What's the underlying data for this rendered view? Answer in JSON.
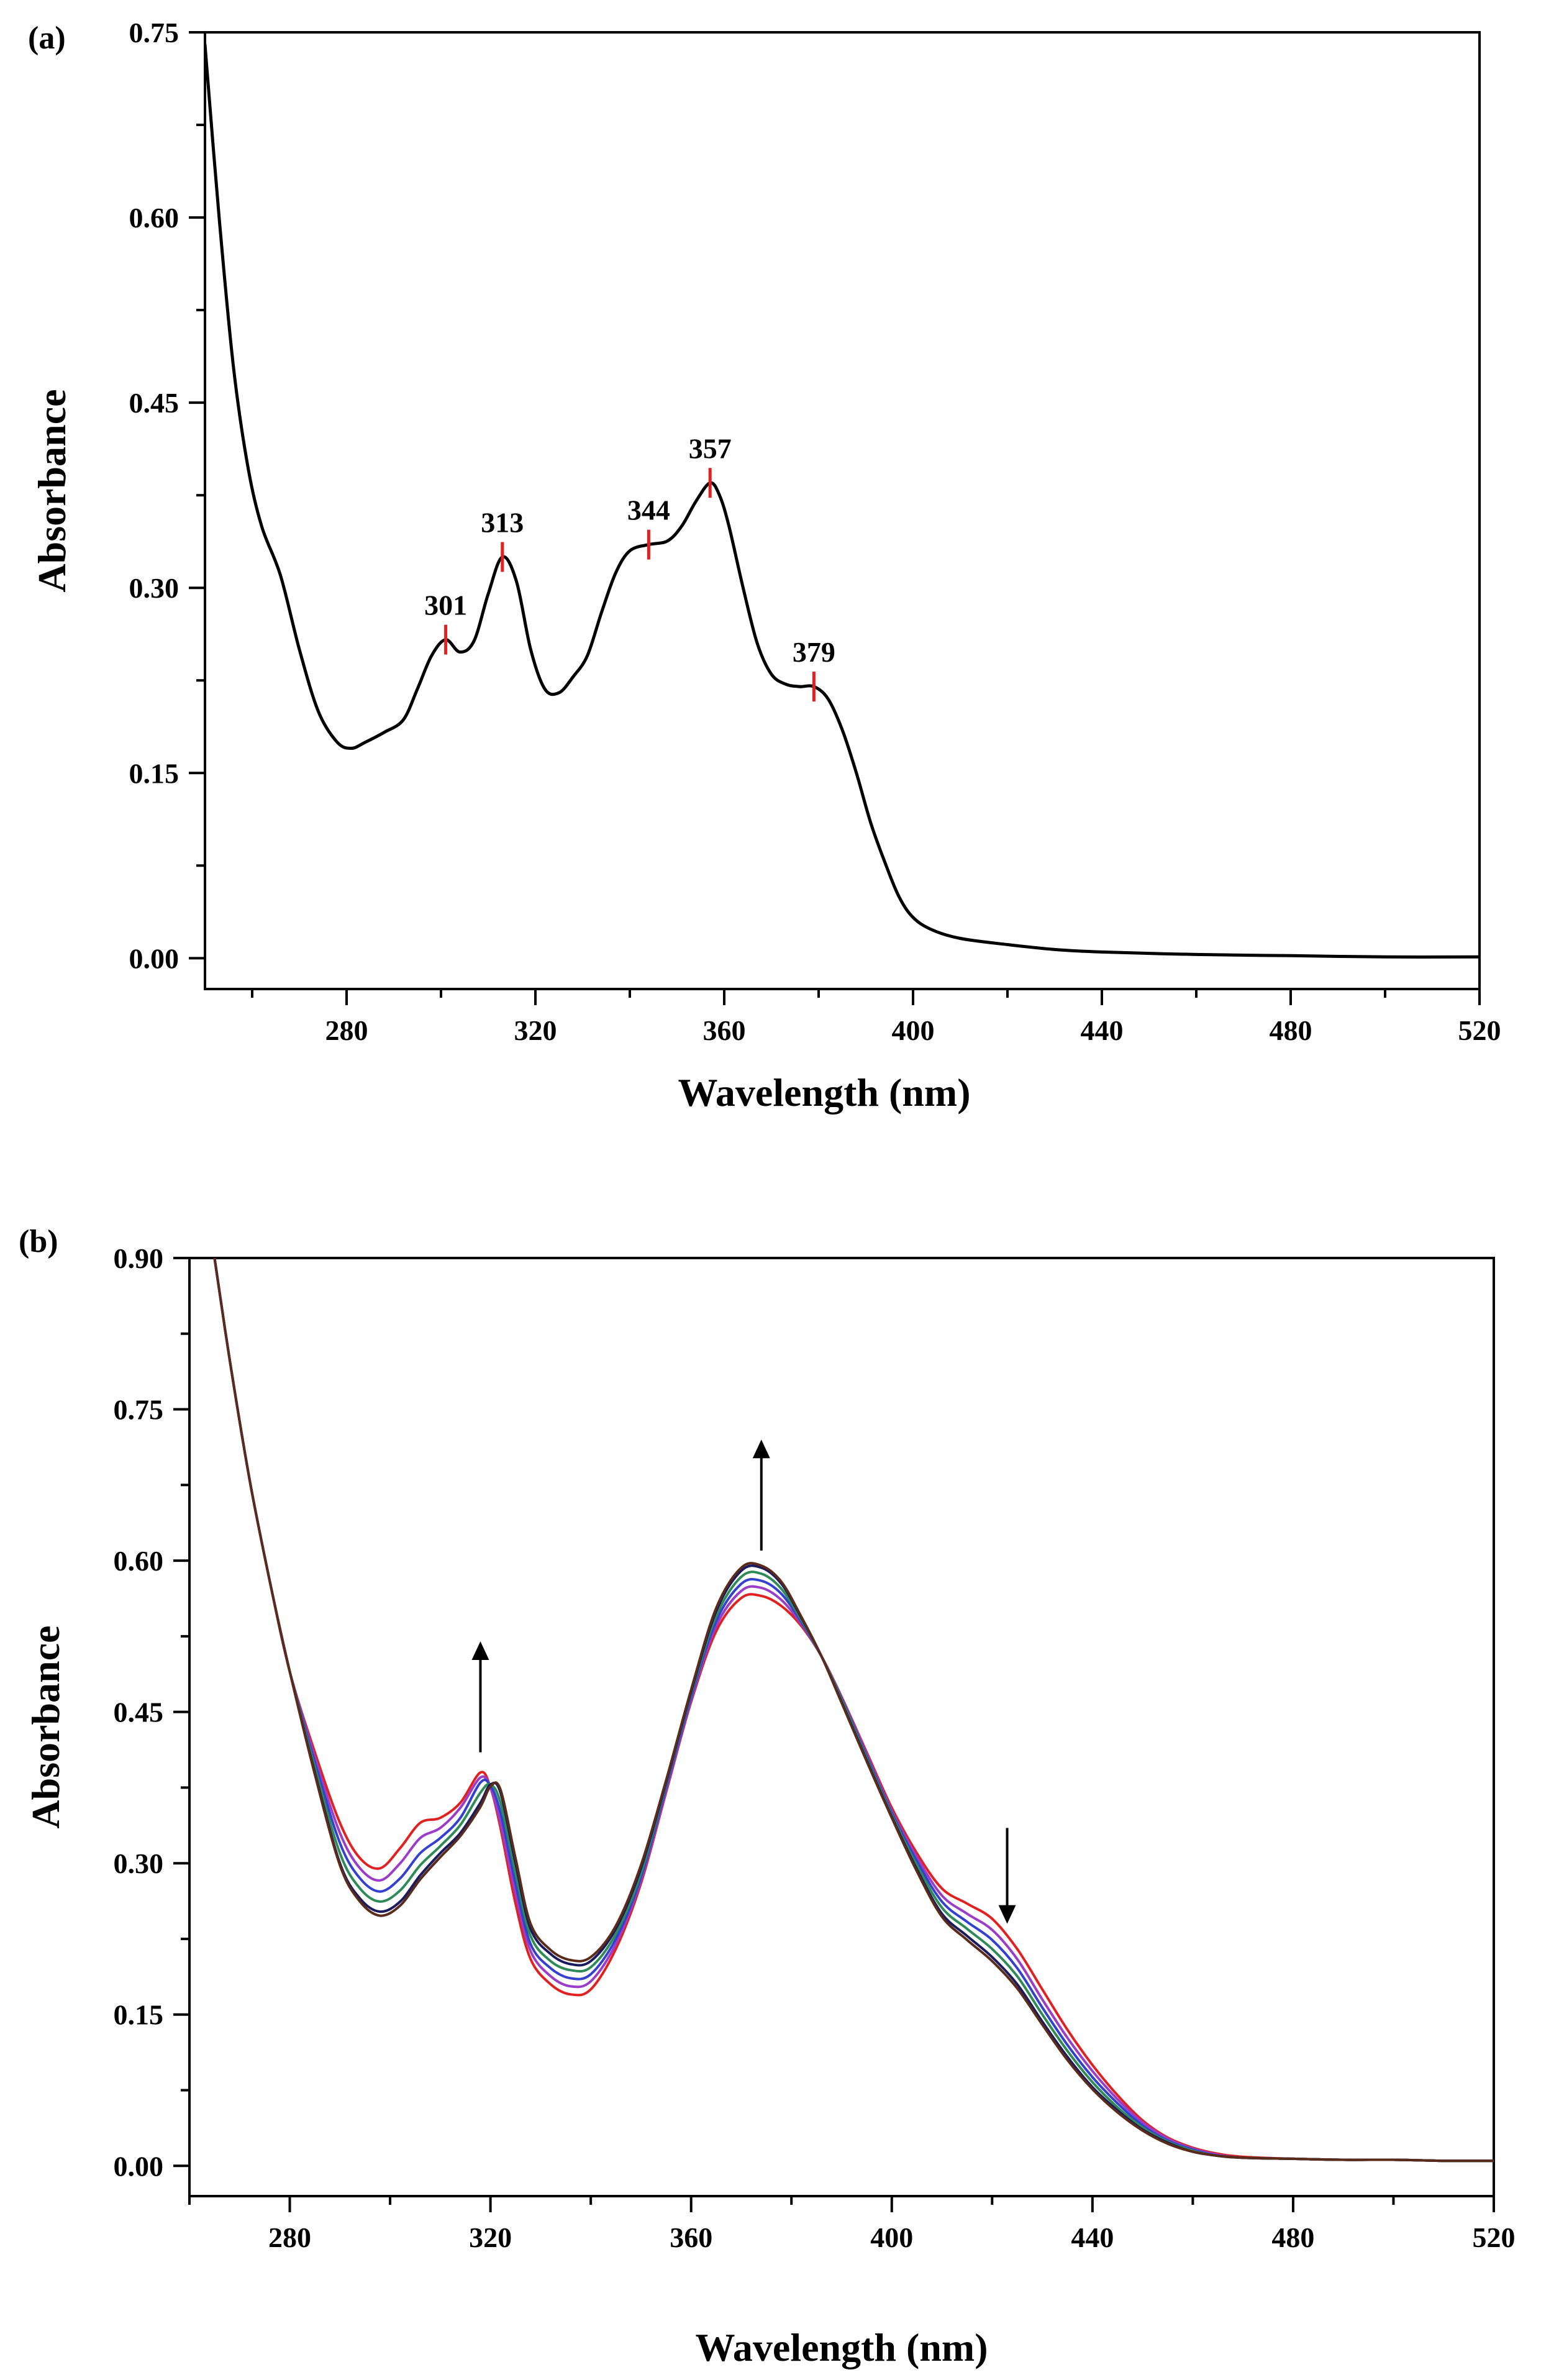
{
  "chart_data": [
    {
      "panel_label": "(a)",
      "type": "line",
      "xlabel": "Wavelength (nm)",
      "ylabel": "Absorbance",
      "xlim": [
        250,
        520
      ],
      "ylim": [
        -0.025,
        0.75
      ],
      "xticks": [
        280,
        320,
        360,
        400,
        440,
        480,
        520
      ],
      "yticks": [
        0.0,
        0.15,
        0.3,
        0.45,
        0.6,
        0.75
      ],
      "ytick_labels": [
        "0.00",
        "0.15",
        "0.30",
        "0.45",
        "0.60",
        "0.75"
      ],
      "x_minor_step": 20,
      "y_minor_step": 0.075,
      "grid": false,
      "series": [
        {
          "color": "#000000",
          "x": [
            250,
            253,
            256,
            259,
            262,
            266,
            270,
            274,
            278,
            281,
            284,
            288,
            292,
            295,
            298,
            301,
            304,
            307,
            310,
            313,
            316,
            319,
            322,
            325,
            328,
            331,
            334,
            337,
            340,
            344,
            348,
            351,
            354,
            357,
            359,
            361,
            364,
            367,
            370,
            373,
            376,
            379,
            382,
            385,
            388,
            391,
            394,
            397,
            400,
            404,
            410,
            420,
            430,
            440,
            460,
            480,
            500,
            520
          ],
          "y": [
            0.74,
            0.6,
            0.48,
            0.4,
            0.35,
            0.31,
            0.25,
            0.2,
            0.175,
            0.17,
            0.175,
            0.183,
            0.193,
            0.218,
            0.245,
            0.258,
            0.248,
            0.257,
            0.295,
            0.325,
            0.305,
            0.25,
            0.218,
            0.215,
            0.228,
            0.245,
            0.28,
            0.312,
            0.33,
            0.335,
            0.338,
            0.35,
            0.37,
            0.385,
            0.375,
            0.35,
            0.3,
            0.255,
            0.23,
            0.222,
            0.22,
            0.22,
            0.21,
            0.185,
            0.15,
            0.11,
            0.078,
            0.05,
            0.033,
            0.023,
            0.016,
            0.011,
            0.007,
            0.005,
            0.003,
            0.002,
            0.001,
            0.001
          ]
        }
      ],
      "annotations": [
        {
          "label": "301",
          "x": 301,
          "y": 0.258
        },
        {
          "label": "313",
          "x": 313,
          "y": 0.325
        },
        {
          "label": "344",
          "x": 344,
          "y": 0.335
        },
        {
          "label": "357",
          "x": 357,
          "y": 0.385
        },
        {
          "label": "379",
          "x": 379,
          "y": 0.22
        }
      ],
      "marker_color": "#e32020"
    },
    {
      "panel_label": "(b)",
      "type": "line",
      "xlabel": "Wavelength (nm)",
      "ylabel": "Absorbance",
      "xlim": [
        260,
        520
      ],
      "ylim": [
        -0.03,
        0.9
      ],
      "xticks": [
        280,
        320,
        360,
        400,
        440,
        480,
        520
      ],
      "yticks": [
        0.0,
        0.15,
        0.3,
        0.45,
        0.6,
        0.75,
        0.9
      ],
      "ytick_labels": [
        "0.00",
        "0.15",
        "0.30",
        "0.45",
        "0.60",
        "0.75",
        "0.90"
      ],
      "x_minor_step": 20,
      "y_minor_step": 0.075,
      "grid": false,
      "x": [
        265,
        268,
        272,
        276,
        280,
        285,
        290,
        294,
        298,
        302,
        306,
        310,
        314,
        318,
        320,
        322,
        325,
        328,
        332,
        336,
        340,
        345,
        350,
        355,
        360,
        365,
        370,
        374,
        378,
        382,
        386,
        390,
        395,
        400,
        405,
        410,
        415,
        420,
        425,
        430,
        435,
        440,
        445,
        450,
        455,
        460,
        465,
        470,
        480,
        490,
        500,
        510,
        520
      ],
      "series": [
        {
          "color": "#e32020",
          "y": [
            0.9,
            0.8,
            0.68,
            0.58,
            0.49,
            0.41,
            0.34,
            0.305,
            0.295,
            0.315,
            0.34,
            0.345,
            0.36,
            0.39,
            0.375,
            0.335,
            0.26,
            0.205,
            0.18,
            0.17,
            0.175,
            0.215,
            0.28,
            0.37,
            0.46,
            0.53,
            0.563,
            0.565,
            0.555,
            0.535,
            0.505,
            0.465,
            0.41,
            0.355,
            0.31,
            0.275,
            0.26,
            0.245,
            0.215,
            0.175,
            0.135,
            0.1,
            0.07,
            0.045,
            0.028,
            0.018,
            0.012,
            0.009,
            0.007,
            0.006,
            0.006,
            0.005,
            0.005
          ]
        },
        {
          "color": "#9b3dc8",
          "y": [
            0.9,
            0.8,
            0.68,
            0.58,
            0.49,
            0.405,
            0.33,
            0.295,
            0.283,
            0.3,
            0.325,
            0.335,
            0.355,
            0.385,
            0.375,
            0.34,
            0.27,
            0.213,
            0.188,
            0.178,
            0.183,
            0.22,
            0.283,
            0.372,
            0.462,
            0.535,
            0.57,
            0.573,
            0.561,
            0.537,
            0.505,
            0.464,
            0.408,
            0.352,
            0.306,
            0.268,
            0.25,
            0.234,
            0.205,
            0.165,
            0.127,
            0.094,
            0.066,
            0.043,
            0.027,
            0.017,
            0.011,
            0.008,
            0.007,
            0.006,
            0.006,
            0.005,
            0.005
          ]
        },
        {
          "color": "#3340d0",
          "y": [
            0.9,
            0.8,
            0.68,
            0.58,
            0.49,
            0.4,
            0.32,
            0.285,
            0.272,
            0.285,
            0.31,
            0.325,
            0.345,
            0.38,
            0.377,
            0.35,
            0.28,
            0.22,
            0.196,
            0.186,
            0.19,
            0.225,
            0.286,
            0.375,
            0.465,
            0.54,
            0.577,
            0.58,
            0.567,
            0.539,
            0.505,
            0.463,
            0.406,
            0.35,
            0.302,
            0.262,
            0.242,
            0.224,
            0.196,
            0.157,
            0.12,
            0.088,
            0.062,
            0.04,
            0.025,
            0.016,
            0.01,
            0.008,
            0.007,
            0.006,
            0.006,
            0.005,
            0.005
          ]
        },
        {
          "color": "#2e8b57",
          "y": [
            0.9,
            0.8,
            0.68,
            0.58,
            0.49,
            0.395,
            0.31,
            0.275,
            0.262,
            0.273,
            0.298,
            0.317,
            0.338,
            0.37,
            0.378,
            0.36,
            0.29,
            0.228,
            0.203,
            0.194,
            0.197,
            0.23,
            0.29,
            0.378,
            0.468,
            0.545,
            0.584,
            0.587,
            0.572,
            0.541,
            0.505,
            0.462,
            0.404,
            0.348,
            0.298,
            0.256,
            0.235,
            0.215,
            0.188,
            0.15,
            0.114,
            0.083,
            0.058,
            0.038,
            0.024,
            0.015,
            0.01,
            0.008,
            0.007,
            0.006,
            0.006,
            0.005,
            0.005
          ]
        },
        {
          "color": "#1a1a5e",
          "y": [
            0.9,
            0.8,
            0.68,
            0.58,
            0.49,
            0.39,
            0.3,
            0.265,
            0.252,
            0.262,
            0.288,
            0.31,
            0.33,
            0.36,
            0.378,
            0.37,
            0.3,
            0.235,
            0.21,
            0.2,
            0.203,
            0.235,
            0.295,
            0.38,
            0.47,
            0.55,
            0.59,
            0.593,
            0.577,
            0.543,
            0.505,
            0.46,
            0.402,
            0.346,
            0.294,
            0.25,
            0.228,
            0.207,
            0.18,
            0.143,
            0.108,
            0.078,
            0.055,
            0.036,
            0.023,
            0.014,
            0.01,
            0.008,
            0.007,
            0.006,
            0.006,
            0.005,
            0.005
          ]
        },
        {
          "color": "#5a2a1a",
          "y": [
            0.9,
            0.8,
            0.68,
            0.58,
            0.49,
            0.388,
            0.298,
            0.262,
            0.248,
            0.258,
            0.284,
            0.306,
            0.327,
            0.356,
            0.376,
            0.373,
            0.305,
            0.24,
            0.214,
            0.204,
            0.207,
            0.238,
            0.298,
            0.382,
            0.472,
            0.553,
            0.593,
            0.595,
            0.579,
            0.544,
            0.505,
            0.459,
            0.401,
            0.345,
            0.292,
            0.247,
            0.224,
            0.203,
            0.176,
            0.14,
            0.105,
            0.076,
            0.053,
            0.035,
            0.022,
            0.014,
            0.01,
            0.008,
            0.007,
            0.006,
            0.006,
            0.005,
            0.005
          ]
        }
      ],
      "arrows": [
        {
          "direction": "up",
          "x": 318,
          "y_from": 0.41,
          "y_to": 0.52
        },
        {
          "direction": "up",
          "x": 374,
          "y_from": 0.61,
          "y_to": 0.72
        },
        {
          "direction": "down",
          "x": 423,
          "y_from": 0.335,
          "y_to": 0.24
        }
      ]
    }
  ]
}
